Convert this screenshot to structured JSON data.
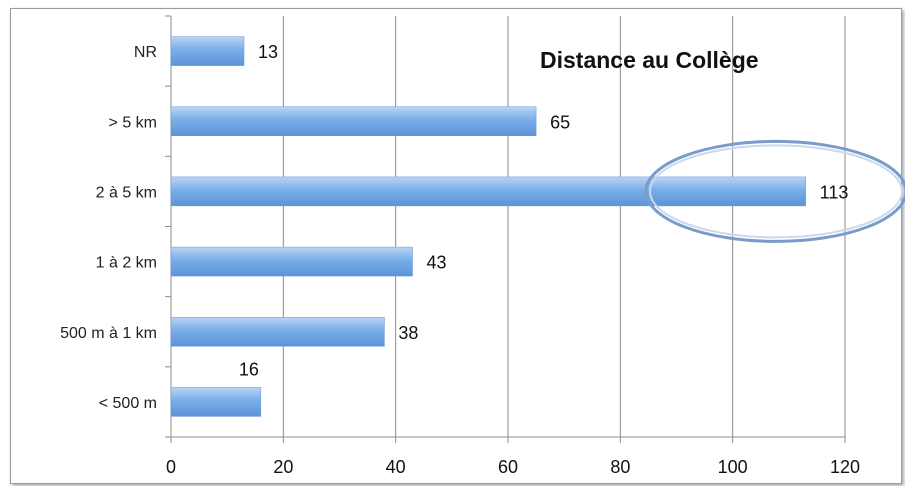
{
  "chart_data": {
    "type": "bar",
    "orientation": "horizontal",
    "title": "Distance au Collège",
    "categories": [
      "< 500 m",
      "500 m à 1 km",
      "1 à 2 km",
      "2 à 5 km",
      "> 5 km",
      "NR"
    ],
    "values": [
      16,
      38,
      43,
      113,
      65,
      13
    ],
    "data_labels": [
      "16",
      "38",
      "43",
      "113",
      "65",
      "13"
    ],
    "xlim": [
      0,
      120
    ],
    "x_ticks": [
      0,
      20,
      40,
      60,
      80,
      100,
      120
    ],
    "x_tick_labels": [
      "0",
      "20",
      "40",
      "60",
      "80",
      "100",
      "120"
    ],
    "grid": "vertical",
    "bar_color": "#7aaee8",
    "highlight": {
      "category": "2 à 5 km",
      "shape": "ellipse",
      "color": "#7a9cc8"
    }
  }
}
